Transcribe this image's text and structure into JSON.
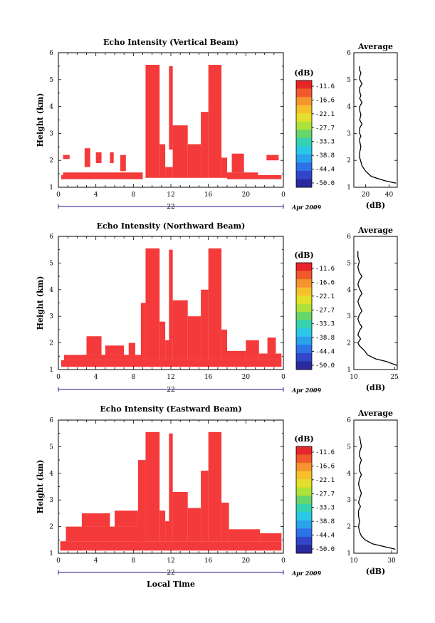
{
  "chart_data": [
    {
      "type": "heatmap",
      "title": "Echo Intensity (Vertical Beam)",
      "xlabel": "",
      "ylabel": "Height (km)",
      "xlim": [
        0,
        24
      ],
      "ylim": [
        1,
        6
      ],
      "x_ticks": [
        "0",
        "4",
        "8",
        "12",
        "16",
        "20",
        "0"
      ],
      "y_ticks": [
        "1",
        "2",
        "3",
        "4",
        "5",
        "6"
      ],
      "date_axis": {
        "day": "22",
        "month_year": "Apr 2009"
      },
      "colorbar": {
        "unit": "(dB)",
        "labels": [
          "-11.6",
          "-16.6",
          "-22.1",
          "-27.7",
          "-33.3",
          "-38.8",
          "-44.4",
          "-50.0"
        ]
      },
      "color": "#f43a3a",
      "echo_regions": [
        {
          "x0": 0.3,
          "x1": 9.0,
          "y0": 1.3,
          "y1": 1.45
        },
        {
          "x0": 0.5,
          "x1": 9.0,
          "y0": 1.45,
          "y1": 1.55
        },
        {
          "x0": 0.5,
          "x1": 1.2,
          "y0": 2.05,
          "y1": 2.2
        },
        {
          "x0": 2.8,
          "x1": 3.4,
          "y0": 1.75,
          "y1": 2.45
        },
        {
          "x0": 4.0,
          "x1": 4.6,
          "y0": 1.9,
          "y1": 2.3
        },
        {
          "x0": 5.5,
          "x1": 5.9,
          "y0": 1.9,
          "y1": 2.3
        },
        {
          "x0": 6.6,
          "x1": 7.2,
          "y0": 1.6,
          "y1": 2.2
        },
        {
          "x0": 9.3,
          "x1": 10.8,
          "y0": 1.35,
          "y1": 5.55
        },
        {
          "x0": 10.8,
          "x1": 11.4,
          "y0": 1.35,
          "y1": 2.6
        },
        {
          "x0": 11.4,
          "x1": 12.2,
          "y0": 1.35,
          "y1": 1.75
        },
        {
          "x0": 11.8,
          "x1": 12.2,
          "y0": 2.4,
          "y1": 5.5
        },
        {
          "x0": 12.2,
          "x1": 13.8,
          "y0": 1.35,
          "y1": 3.3
        },
        {
          "x0": 13.8,
          "x1": 15.2,
          "y0": 1.35,
          "y1": 2.6
        },
        {
          "x0": 15.2,
          "x1": 16.0,
          "y0": 1.35,
          "y1": 3.8
        },
        {
          "x0": 16.0,
          "x1": 17.4,
          "y0": 1.35,
          "y1": 5.55
        },
        {
          "x0": 17.4,
          "x1": 18.0,
          "y0": 1.35,
          "y1": 2.1
        },
        {
          "x0": 18.0,
          "x1": 21.3,
          "y0": 1.3,
          "y1": 1.55
        },
        {
          "x0": 18.5,
          "x1": 19.8,
          "y0": 1.55,
          "y1": 2.25
        },
        {
          "x0": 21.3,
          "x1": 23.8,
          "y0": 1.3,
          "y1": 1.45
        },
        {
          "x0": 22.2,
          "x1": 23.5,
          "y0": 2.0,
          "y1": 2.2
        }
      ]
    },
    {
      "type": "line",
      "title": "Average",
      "xlabel": "(dB)",
      "ylabel": "",
      "xlim": [
        10,
        47
      ],
      "ylim": [
        1,
        6
      ],
      "x_ticks": [
        "20",
        "40"
      ],
      "y_ticks": [
        "1",
        "2",
        "3",
        "4",
        "5",
        "6"
      ],
      "series": [
        {
          "x": [
            46,
            36,
            25,
            20,
            17,
            16,
            15,
            15,
            16,
            15,
            15,
            16,
            15,
            15,
            17,
            15,
            16,
            15,
            15,
            17,
            15,
            16,
            15,
            15,
            17,
            15,
            15,
            16,
            15,
            15,
            15
          ],
          "y": [
            1.15,
            1.25,
            1.4,
            1.6,
            1.8,
            1.95,
            2.1,
            2.3,
            2.5,
            2.7,
            2.8,
            2.9,
            3.0,
            3.2,
            3.35,
            3.5,
            3.7,
            3.85,
            4.0,
            4.15,
            4.3,
            4.4,
            4.55,
            4.7,
            4.85,
            5.0,
            5.1,
            5.25,
            5.35,
            5.45,
            5.5
          ]
        }
      ]
    },
    {
      "type": "heatmap",
      "title": "Echo Intensity (Northward Beam)",
      "xlabel": "",
      "ylabel": "Height (km)",
      "xlim": [
        0,
        24
      ],
      "ylim": [
        1,
        6
      ],
      "x_ticks": [
        "0",
        "4",
        "8",
        "12",
        "16",
        "20",
        "0"
      ],
      "y_ticks": [
        "1",
        "2",
        "3",
        "4",
        "5",
        "6"
      ],
      "date_axis": {
        "day": "22",
        "month_year": "Apr 2009"
      },
      "colorbar": {
        "unit": "(dB)",
        "labels": [
          "-11.6",
          "-16.6",
          "-22.1",
          "-27.7",
          "-33.3",
          "-38.8",
          "-44.4",
          "-50.0"
        ]
      },
      "color": "#f43a3a",
      "echo_regions": [
        {
          "x0": 0.3,
          "x1": 23.8,
          "y0": 1.1,
          "y1": 1.35
        },
        {
          "x0": 0.6,
          "x1": 9.0,
          "y0": 1.35,
          "y1": 1.55
        },
        {
          "x0": 3.0,
          "x1": 4.6,
          "y0": 1.55,
          "y1": 2.25
        },
        {
          "x0": 5.0,
          "x1": 7.0,
          "y0": 1.55,
          "y1": 1.9
        },
        {
          "x0": 7.5,
          "x1": 8.2,
          "y0": 1.55,
          "y1": 2.0
        },
        {
          "x0": 8.8,
          "x1": 9.3,
          "y0": 1.35,
          "y1": 3.5
        },
        {
          "x0": 9.3,
          "x1": 10.8,
          "y0": 1.35,
          "y1": 5.55
        },
        {
          "x0": 10.8,
          "x1": 11.4,
          "y0": 1.35,
          "y1": 2.8
        },
        {
          "x0": 11.4,
          "x1": 12.2,
          "y0": 1.35,
          "y1": 2.1
        },
        {
          "x0": 11.8,
          "x1": 12.2,
          "y0": 2.1,
          "y1": 5.5
        },
        {
          "x0": 12.2,
          "x1": 13.8,
          "y0": 1.35,
          "y1": 3.6
        },
        {
          "x0": 13.8,
          "x1": 15.2,
          "y0": 1.35,
          "y1": 3.0
        },
        {
          "x0": 15.2,
          "x1": 16.0,
          "y0": 1.35,
          "y1": 4.0
        },
        {
          "x0": 16.0,
          "x1": 17.4,
          "y0": 1.35,
          "y1": 5.55
        },
        {
          "x0": 17.4,
          "x1": 18.0,
          "y0": 1.35,
          "y1": 2.5
        },
        {
          "x0": 18.0,
          "x1": 20.0,
          "y0": 1.35,
          "y1": 1.7
        },
        {
          "x0": 20.0,
          "x1": 21.4,
          "y0": 1.35,
          "y1": 2.1
        },
        {
          "x0": 21.4,
          "x1": 23.8,
          "y0": 1.35,
          "y1": 1.6
        },
        {
          "x0": 22.3,
          "x1": 23.2,
          "y0": 1.6,
          "y1": 2.2
        }
      ]
    },
    {
      "type": "line",
      "title": "Average",
      "xlabel": "(dB)",
      "ylabel": "",
      "xlim": [
        10,
        26
      ],
      "ylim": [
        1,
        6
      ],
      "x_ticks": [
        "10",
        "25"
      ],
      "y_ticks": [
        "1",
        "2",
        "3",
        "4",
        "5",
        "6"
      ],
      "series": [
        {
          "x": [
            26,
            22,
            18,
            15,
            14,
            13,
            12,
            11.5,
            12.5,
            11.5,
            12,
            13,
            12,
            11.5,
            12,
            13,
            12,
            11.5,
            12,
            13,
            12,
            11.5,
            12,
            13,
            12,
            11.5,
            12,
            11.5,
            11.5
          ],
          "y": [
            1.15,
            1.3,
            1.4,
            1.55,
            1.7,
            1.8,
            1.9,
            2.0,
            2.15,
            2.3,
            2.45,
            2.6,
            2.75,
            2.9,
            3.05,
            3.2,
            3.4,
            3.55,
            3.7,
            3.85,
            4.05,
            4.2,
            4.35,
            4.5,
            4.65,
            4.85,
            5.05,
            5.25,
            5.45
          ]
        }
      ]
    },
    {
      "type": "heatmap",
      "title": "Echo Intensity (Eastward Beam)",
      "xlabel": "Local Time",
      "ylabel": "Height (km)",
      "xlim": [
        0,
        24
      ],
      "ylim": [
        1,
        6
      ],
      "x_ticks": [
        "0",
        "4",
        "8",
        "12",
        "16",
        "20",
        "0"
      ],
      "y_ticks": [
        "1",
        "2",
        "3",
        "4",
        "5",
        "6"
      ],
      "date_axis": {
        "day": "22",
        "month_year": "Apr 2009"
      },
      "colorbar": {
        "unit": "(dB)",
        "labels": [
          "-11.6",
          "-16.6",
          "-22.1",
          "-27.7",
          "-33.3",
          "-38.8",
          "-44.4",
          "-50.0"
        ]
      },
      "color": "#f43a3a",
      "echo_regions": [
        {
          "x0": 0.2,
          "x1": 23.8,
          "y0": 1.1,
          "y1": 1.45
        },
        {
          "x0": 0.8,
          "x1": 9.0,
          "y0": 1.45,
          "y1": 2.0
        },
        {
          "x0": 2.5,
          "x1": 5.5,
          "y0": 2.0,
          "y1": 2.5
        },
        {
          "x0": 6.0,
          "x1": 8.5,
          "y0": 2.0,
          "y1": 2.6
        },
        {
          "x0": 8.5,
          "x1": 9.3,
          "y0": 1.45,
          "y1": 4.5
        },
        {
          "x0": 9.3,
          "x1": 10.8,
          "y0": 1.45,
          "y1": 5.55
        },
        {
          "x0": 10.8,
          "x1": 11.4,
          "y0": 1.45,
          "y1": 2.6
        },
        {
          "x0": 11.4,
          "x1": 12.2,
          "y0": 1.45,
          "y1": 2.2
        },
        {
          "x0": 11.8,
          "x1": 12.2,
          "y0": 2.2,
          "y1": 5.5
        },
        {
          "x0": 12.2,
          "x1": 13.8,
          "y0": 1.45,
          "y1": 3.3
        },
        {
          "x0": 13.8,
          "x1": 15.2,
          "y0": 1.45,
          "y1": 2.7
        },
        {
          "x0": 15.2,
          "x1": 16.0,
          "y0": 1.45,
          "y1": 4.1
        },
        {
          "x0": 16.0,
          "x1": 17.4,
          "y0": 1.45,
          "y1": 5.55
        },
        {
          "x0": 17.4,
          "x1": 18.2,
          "y0": 1.45,
          "y1": 2.9
        },
        {
          "x0": 18.2,
          "x1": 21.5,
          "y0": 1.45,
          "y1": 1.9
        },
        {
          "x0": 21.5,
          "x1": 23.8,
          "y0": 1.45,
          "y1": 1.75
        }
      ]
    },
    {
      "type": "line",
      "title": "Average",
      "xlabel": "(dB)",
      "ylabel": "",
      "xlim": [
        10,
        33
      ],
      "ylim": [
        1,
        6
      ],
      "x_ticks": [
        "10",
        "30"
      ],
      "y_ticks": [
        "1",
        "2",
        "3",
        "4",
        "5",
        "6"
      ],
      "series": [
        {
          "x": [
            32,
            26,
            20,
            16,
            14,
            13,
            12.5,
            13,
            12.5,
            12.5,
            13.5,
            12.5,
            13,
            14,
            13,
            12.5,
            13,
            14,
            13,
            13,
            14,
            13,
            13,
            14,
            13.5,
            13
          ],
          "y": [
            1.15,
            1.25,
            1.35,
            1.5,
            1.65,
            1.8,
            2.0,
            2.2,
            2.4,
            2.6,
            2.75,
            2.9,
            3.05,
            3.25,
            3.45,
            3.6,
            3.8,
            3.95,
            4.1,
            4.3,
            4.5,
            4.65,
            4.8,
            5.0,
            5.2,
            5.4
          ]
        }
      ]
    }
  ]
}
